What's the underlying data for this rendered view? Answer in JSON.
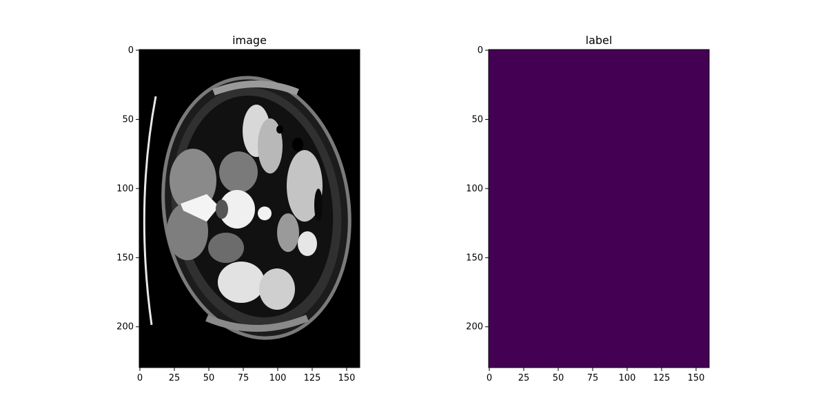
{
  "chart_data": [
    {
      "type": "heatmap",
      "title": "image",
      "colormap": "gray",
      "description_of_values": "axial abdominal CT slice rendered in grayscale",
      "image_shape": [
        230,
        160
      ],
      "xlim": [
        -0.5,
        159.5
      ],
      "ylim": [
        229.5,
        -0.5
      ],
      "x_ticks": [
        0,
        25,
        50,
        75,
        100,
        125,
        150
      ],
      "x_tick_labels": [
        "0",
        "25",
        "50",
        "75",
        "100",
        "125",
        "150"
      ],
      "y_ticks": [
        0,
        50,
        100,
        150,
        200
      ],
      "y_tick_labels": [
        "0",
        "50",
        "100",
        "150",
        "200"
      ]
    },
    {
      "type": "heatmap",
      "title": "label",
      "colormap": "viridis",
      "uniform_value": 0,
      "fill_color": "#440154",
      "image_shape": [
        230,
        160
      ],
      "xlim": [
        -0.5,
        159.5
      ],
      "ylim": [
        229.5,
        -0.5
      ],
      "x_ticks": [
        0,
        25,
        50,
        75,
        100,
        125,
        150
      ],
      "x_tick_labels": [
        "0",
        "25",
        "50",
        "75",
        "100",
        "125",
        "150"
      ],
      "y_ticks": [
        0,
        50,
        100,
        150,
        200
      ],
      "y_tick_labels": [
        "0",
        "50",
        "100",
        "150",
        "200"
      ]
    }
  ]
}
